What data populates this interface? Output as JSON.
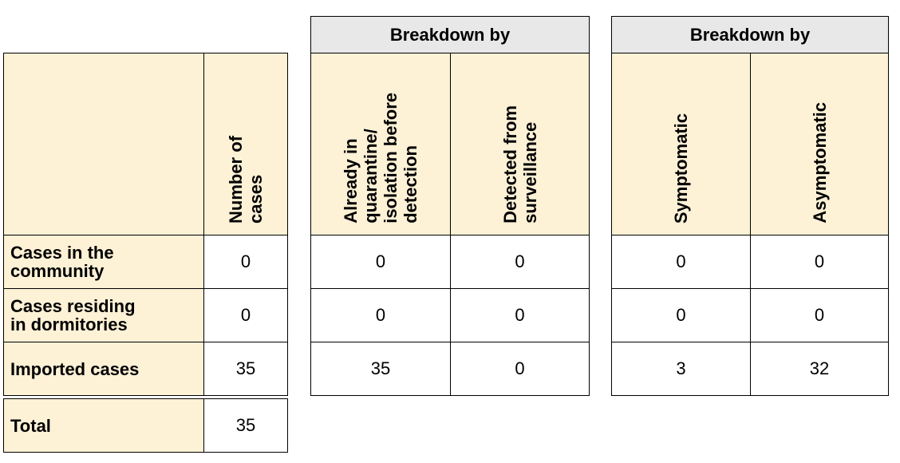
{
  "table": {
    "groups": [
      {
        "title": "Breakdown by"
      },
      {
        "title": "Breakdown by"
      }
    ],
    "headers": {
      "number_of_cases": "Number of\ncases",
      "already_in_quarantine": "Already in\nquarantine/\nisolation before\ndetection",
      "detected_from_surveillance": "Detected from\nsurveillance",
      "symptomatic": "Symptomatic",
      "asymptomatic": "Asymptomatic"
    },
    "rows": [
      {
        "label": "Cases in the\ncommunity",
        "number": "0",
        "quarantine": "0",
        "surveillance": "0",
        "symptomatic": "0",
        "asymptomatic": "0"
      },
      {
        "label": "Cases residing\nin dormitories",
        "number": "0",
        "quarantine": "0",
        "surveillance": "0",
        "symptomatic": "0",
        "asymptomatic": "0"
      },
      {
        "label": "Imported cases",
        "number": "35",
        "quarantine": "35",
        "surveillance": "0",
        "symptomatic": "3",
        "asymptomatic": "32"
      },
      {
        "label": "Total",
        "number": "35"
      }
    ],
    "colors": {
      "header_fill": "#fdf1d6",
      "group_fill": "#e8e8e8",
      "border": "#000000"
    }
  }
}
